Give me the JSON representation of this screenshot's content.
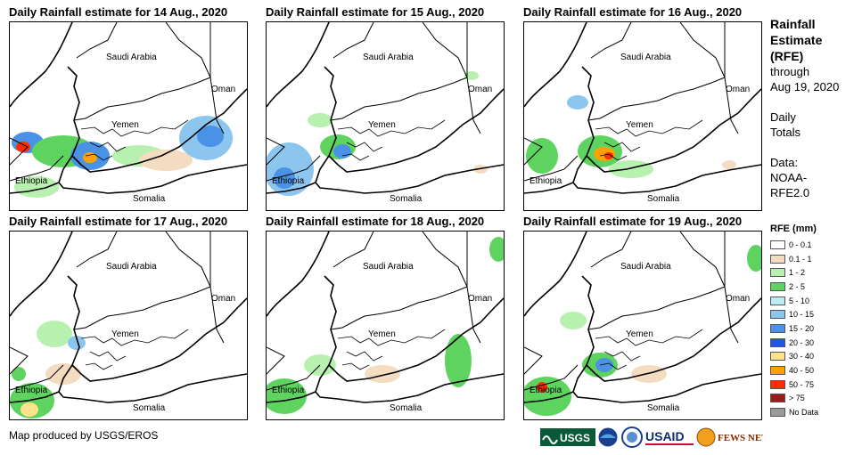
{
  "panels": [
    {
      "title": "Daily Rainfall estimate for 14 Aug., 2020"
    },
    {
      "title": "Daily Rainfall estimate for 15 Aug., 2020"
    },
    {
      "title": "Daily Rainfall estimate for 16 Aug., 2020"
    },
    {
      "title": "Daily Rainfall estimate for 17 Aug., 2020"
    },
    {
      "title": "Daily Rainfall estimate for 18 Aug., 2020"
    },
    {
      "title": "Daily Rainfall estimate for 19 Aug., 2020"
    }
  ],
  "map_labels": {
    "saudi_arabia": "Saudi Arabia",
    "oman": "Oman",
    "yemen": "Yemen",
    "ethiopia": "Ethiopia",
    "somalia": "Somalia"
  },
  "side": {
    "title_line1": "Rainfall",
    "title_line2": "Estimate",
    "title_line3": "(RFE)",
    "through": "through",
    "date": "Aug 19, 2020",
    "daily_line1": "Daily",
    "daily_line2": "Totals",
    "data_line1": "Data:",
    "data_line2": "NOAA-",
    "data_line3": "RFE2.0"
  },
  "legend": {
    "title": "RFE (mm)",
    "items": [
      {
        "label": "0 - 0.1",
        "color": "#ffffff"
      },
      {
        "label": "0.1 - 1",
        "color": "#f3dcc0"
      },
      {
        "label": "1 - 2",
        "color": "#b8f0b0"
      },
      {
        "label": "2 - 5",
        "color": "#5fd35f"
      },
      {
        "label": "5 - 10",
        "color": "#b9ecf5"
      },
      {
        "label": "10 - 15",
        "color": "#8cc6ee"
      },
      {
        "label": "15 - 20",
        "color": "#4a92e6"
      },
      {
        "label": "20 - 30",
        "color": "#1f5bd9"
      },
      {
        "label": "30 - 40",
        "color": "#ffe38c"
      },
      {
        "label": "40 - 50",
        "color": "#ffa200"
      },
      {
        "label": "50 - 75",
        "color": "#ff2a00"
      },
      {
        "label": "> 75",
        "color": "#a01a1a"
      },
      {
        "label": "No Data",
        "color": "#9a9a9a"
      }
    ]
  },
  "footer": {
    "credit": "Map produced by USGS/EROS"
  },
  "logos": {
    "usgs": "USGS",
    "usaid": "USAID",
    "fews": "FEWS NET"
  }
}
